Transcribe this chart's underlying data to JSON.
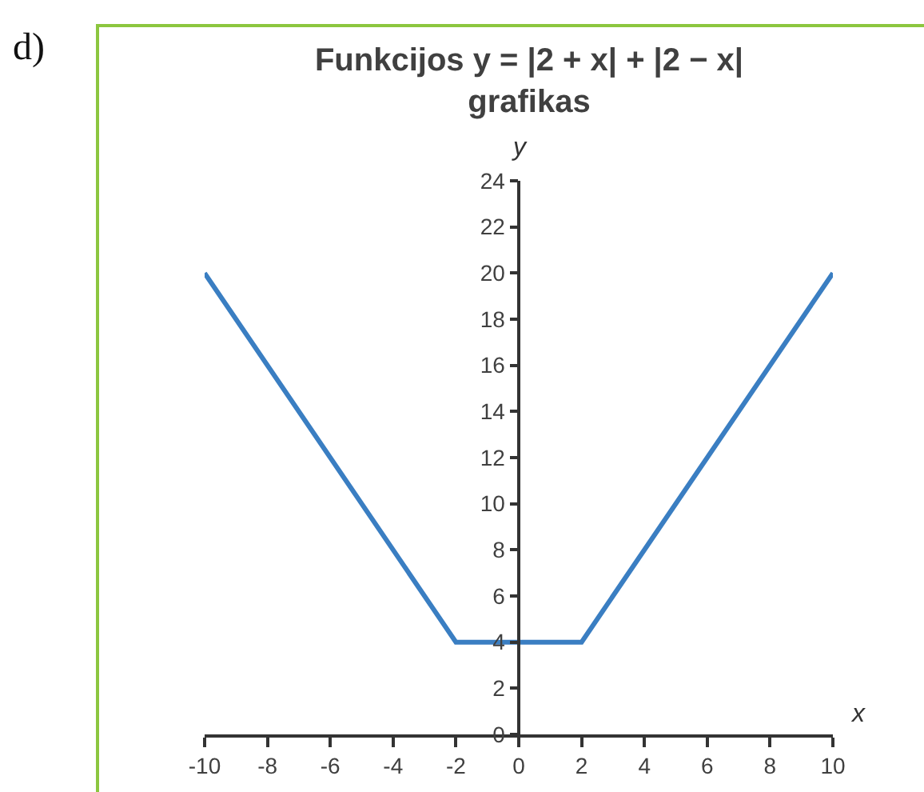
{
  "chart_data": {
    "type": "line",
    "title": "Funkcijos y = |2 + x| + |2 − x|\ngrafikas",
    "xlabel": "x",
    "ylabel": "y",
    "x": [
      -10,
      -2,
      2,
      10
    ],
    "series": [
      {
        "color": "#3a7ec2",
        "values": [
          20,
          4,
          4,
          20
        ]
      }
    ],
    "xlim": [
      -10,
      10
    ],
    "ylim": [
      0,
      24
    ],
    "xticks": [
      -10,
      -8,
      -6,
      -4,
      -2,
      0,
      2,
      4,
      6,
      8,
      10
    ],
    "yticks": [
      0,
      2,
      4,
      6,
      8,
      10,
      12,
      14,
      16,
      18,
      20,
      22,
      24
    ],
    "grid": false,
    "annotations": [
      "d)"
    ]
  }
}
